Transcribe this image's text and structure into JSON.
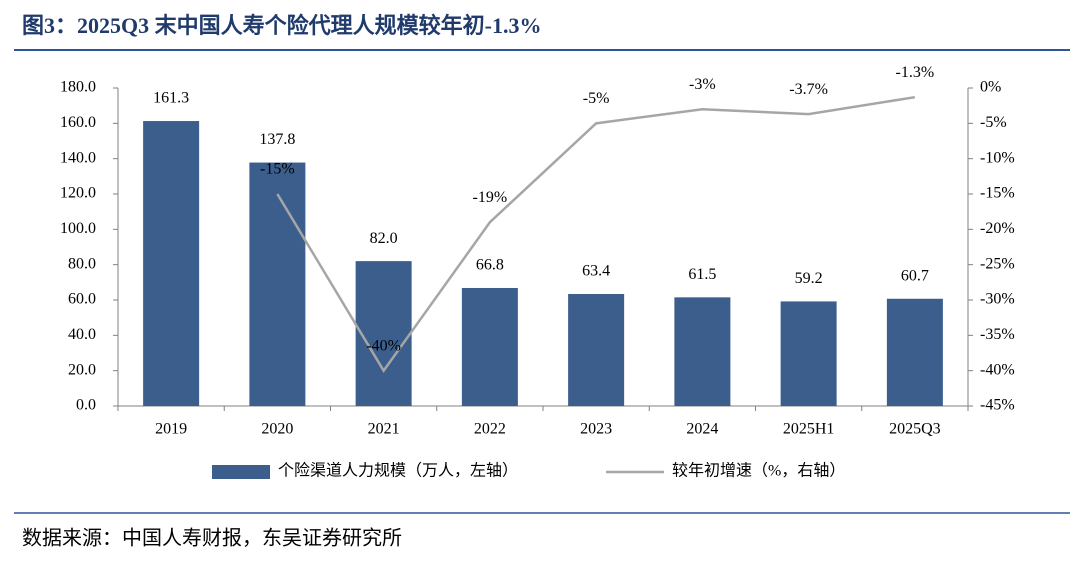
{
  "chart_data": {
    "type": "bar-line",
    "title": "图3：2025Q3 末中国人寿个险代理人规模较年初-1.3%",
    "source": "数据来源：中国人寿财报，东吴证券研究所",
    "categories": [
      "2019",
      "2020",
      "2021",
      "2022",
      "2023",
      "2024",
      "2025H1",
      "2025Q3"
    ],
    "series": [
      {
        "name": "个险渠道人力规模（万人，左轴）",
        "type": "bar",
        "color": "#3b5e8c",
        "values": [
          161.3,
          137.8,
          82.0,
          66.8,
          63.4,
          61.5,
          59.2,
          60.7
        ],
        "value_labels": [
          "161.3",
          "137.8",
          "82.0",
          "66.8",
          "63.4",
          "61.5",
          "59.2",
          "60.7"
        ]
      },
      {
        "name": "较年初增速（%，右轴）",
        "type": "line",
        "axis": "y2",
        "color": "#a6a6a6",
        "values": [
          null,
          -15,
          -40,
          -19,
          -5,
          -3,
          -3.7,
          -1.3
        ],
        "value_labels": [
          null,
          "-15%",
          "-40%",
          "-19%",
          "-5%",
          "-3%",
          "-3.7%",
          "-1.3%"
        ]
      }
    ],
    "ylim": [
      0,
      180
    ],
    "yticks": [
      {
        "value": 0,
        "label": "0.0"
      },
      {
        "value": 20,
        "label": "20.0"
      },
      {
        "value": 40,
        "label": "40.0"
      },
      {
        "value": 60,
        "label": "60.0"
      },
      {
        "value": 80,
        "label": "80.0"
      },
      {
        "value": 100,
        "label": "100.0"
      },
      {
        "value": 120,
        "label": "120.0"
      },
      {
        "value": 140,
        "label": "140.0"
      },
      {
        "value": 160,
        "label": "160.0"
      },
      {
        "value": 180,
        "label": "180.0"
      }
    ],
    "y2lim": [
      -45,
      0
    ],
    "y2ticks": [
      {
        "value": -45,
        "label": "-45%"
      },
      {
        "value": -40,
        "label": "-40%"
      },
      {
        "value": -35,
        "label": "-35%"
      },
      {
        "value": -30,
        "label": "-30%"
      },
      {
        "value": -25,
        "label": "-25%"
      },
      {
        "value": -20,
        "label": "-20%"
      },
      {
        "value": -15,
        "label": "-15%"
      },
      {
        "value": -10,
        "label": "-10%"
      },
      {
        "value": -5,
        "label": "-5%"
      },
      {
        "value": 0,
        "label": "0%"
      }
    ],
    "grid": false,
    "legend": "bottom"
  }
}
